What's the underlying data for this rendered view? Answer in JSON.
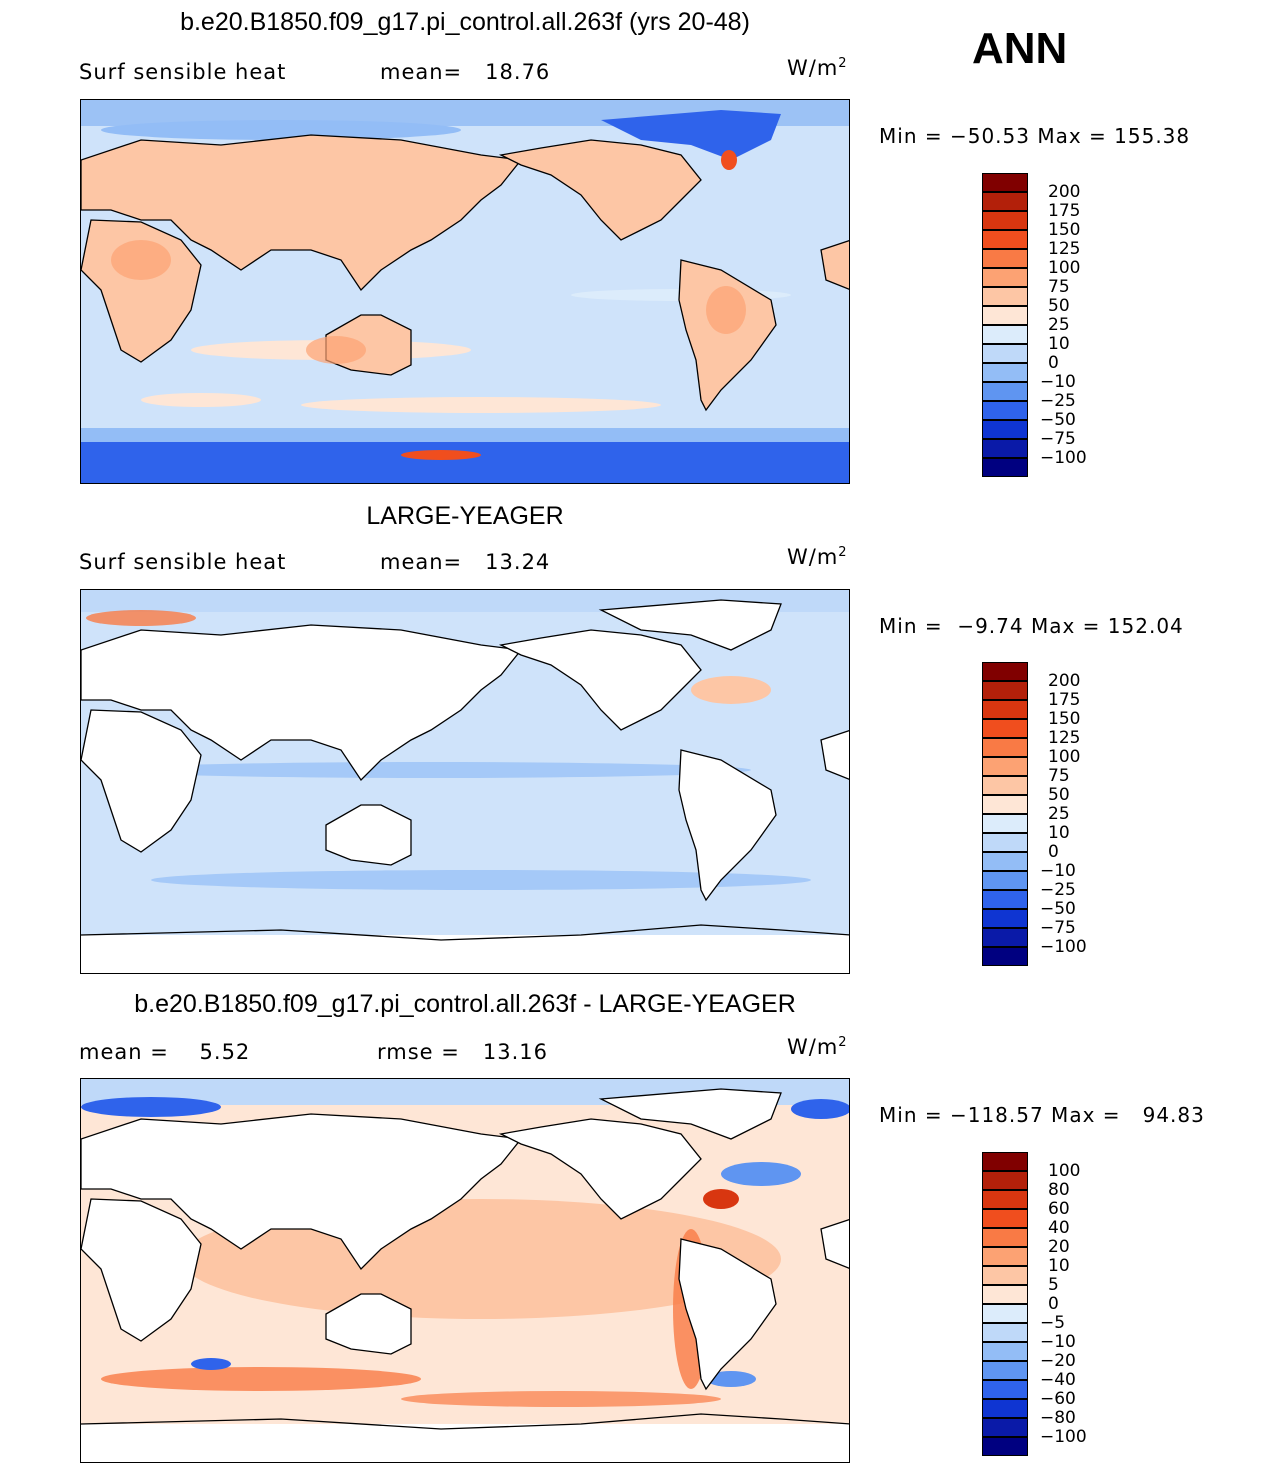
{
  "header": {
    "season": "ANN"
  },
  "panels": [
    {
      "title": "b.e20.B1850.f09_g17.pi_control.all.263f (yrs 20-48)",
      "left_label": "Surf sensible heat",
      "mid_label": "mean=   18.76",
      "units": "W/m",
      "units_exp": "2",
      "minmax": "Min = −50.53 Max = 155.38"
    },
    {
      "title": "LARGE-YEAGER",
      "left_label": "Surf sensible heat",
      "mid_label": "mean=   13.24",
      "units": "W/m",
      "units_exp": "2",
      "minmax": "Min =  −9.74 Max = 152.04"
    },
    {
      "title": "b.e20.B1850.f09_g17.pi_control.all.263f - LARGE-YEAGER",
      "left_label": "mean =    5.52",
      "mid_label": "rmse =   13.16",
      "units": "W/m",
      "units_exp": "2",
      "minmax": "Min = −118.57 Max =   94.83"
    }
  ],
  "colorbars": [
    {
      "levels": [
        "200",
        "175",
        "150",
        "125",
        "100",
        "75",
        "50",
        "25",
        "10",
        "0",
        "−10",
        "−25",
        "−50",
        "−75",
        "−100"
      ],
      "colors": [
        "#800000",
        "#b3200a",
        "#d83610",
        "#f04e1e",
        "#f97a45",
        "#fca273",
        "#fdc6a5",
        "#fee6d6",
        "#dcecfb",
        "#bfd9f9",
        "#93bdf6",
        "#5f95f1",
        "#2f63eb",
        "#0f35d2",
        "#0a1aa8",
        "#000080"
      ]
    },
    {
      "levels": [
        "200",
        "175",
        "150",
        "125",
        "100",
        "75",
        "50",
        "25",
        "10",
        "0",
        "−10",
        "−25",
        "−50",
        "−75",
        "−100"
      ],
      "colors": [
        "#800000",
        "#b3200a",
        "#d83610",
        "#f04e1e",
        "#f97a45",
        "#fca273",
        "#fdc6a5",
        "#fee6d6",
        "#dcecfb",
        "#bfd9f9",
        "#93bdf6",
        "#5f95f1",
        "#2f63eb",
        "#0f35d2",
        "#0a1aa8",
        "#000080"
      ]
    },
    {
      "levels": [
        "100",
        "80",
        "60",
        "40",
        "20",
        "10",
        "5",
        "0",
        "−5",
        "−10",
        "−20",
        "−40",
        "−60",
        "−80",
        "−100"
      ],
      "colors": [
        "#800000",
        "#b3200a",
        "#d83610",
        "#f04e1e",
        "#f97a45",
        "#fca273",
        "#fdc6a5",
        "#fee6d6",
        "#dcecfb",
        "#bfd9f9",
        "#93bdf6",
        "#5f95f1",
        "#2f63eb",
        "#0f35d2",
        "#0a1aa8",
        "#000080"
      ]
    }
  ]
}
